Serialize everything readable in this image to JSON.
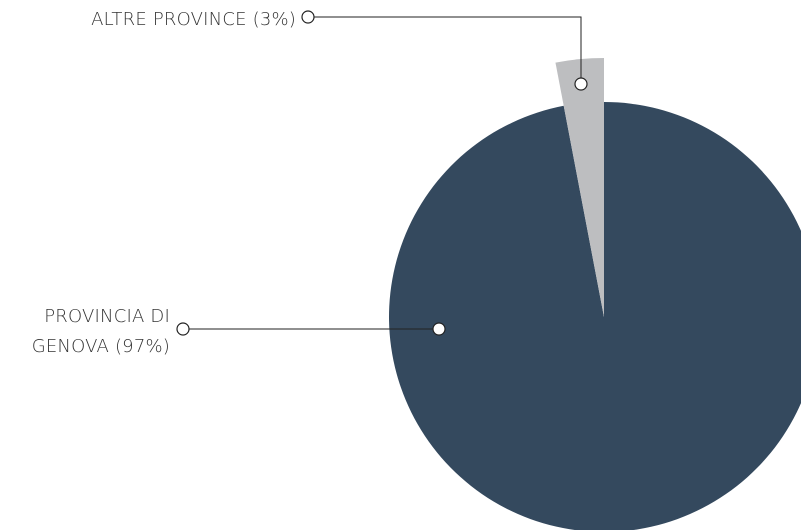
{
  "chart_data": {
    "type": "pie",
    "values": [
      97,
      3
    ],
    "value_labels": [
      "PROVINCIA DI GENOVA (97%)",
      "ALTRE PROVINCE (3%)"
    ],
    "colors": [
      "#34495e",
      "#bdbec0"
    ]
  }
}
